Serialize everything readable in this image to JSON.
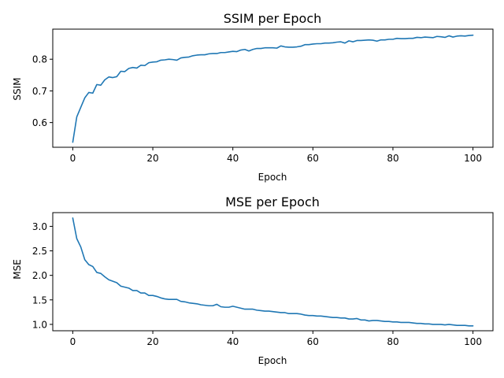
{
  "colors": {
    "line": "#1f77b4",
    "axes": "#000000",
    "background": "#ffffff"
  },
  "chart_data": [
    {
      "type": "line",
      "title": "SSIM per Epoch",
      "xlabel": "Epoch",
      "ylabel": "SSIM",
      "xlim": [
        -5,
        105
      ],
      "ylim": [
        0.522,
        0.895
      ],
      "xticks": [
        0,
        20,
        40,
        60,
        80,
        100
      ],
      "yticks": [
        0.6,
        0.7,
        0.8
      ],
      "ytick_labels": [
        "0.6",
        "0.7",
        "0.8"
      ],
      "grid": false,
      "x": [
        0,
        1,
        2,
        3,
        4,
        5,
        6,
        7,
        8,
        9,
        10,
        11,
        12,
        13,
        14,
        15,
        16,
        17,
        18,
        19,
        20,
        21,
        22,
        23,
        24,
        25,
        26,
        27,
        28,
        29,
        30,
        31,
        32,
        33,
        34,
        35,
        36,
        37,
        38,
        39,
        40,
        41,
        42,
        43,
        44,
        45,
        46,
        47,
        48,
        49,
        50,
        51,
        52,
        53,
        54,
        55,
        56,
        57,
        58,
        59,
        60,
        61,
        62,
        63,
        64,
        65,
        66,
        67,
        68,
        69,
        70,
        71,
        72,
        73,
        74,
        75,
        76,
        77,
        78,
        79,
        80,
        81,
        82,
        83,
        84,
        85,
        86,
        87,
        88,
        89,
        90,
        91,
        92,
        93,
        94,
        95,
        96,
        97,
        98,
        99,
        100
      ],
      "values": [
        0.538,
        0.618,
        0.648,
        0.678,
        0.695,
        0.693,
        0.72,
        0.718,
        0.735,
        0.744,
        0.742,
        0.745,
        0.762,
        0.761,
        0.771,
        0.774,
        0.772,
        0.781,
        0.78,
        0.789,
        0.791,
        0.792,
        0.797,
        0.798,
        0.8,
        0.799,
        0.797,
        0.804,
        0.806,
        0.807,
        0.811,
        0.813,
        0.814,
        0.814,
        0.817,
        0.818,
        0.818,
        0.821,
        0.821,
        0.823,
        0.825,
        0.824,
        0.829,
        0.831,
        0.826,
        0.831,
        0.834,
        0.834,
        0.836,
        0.836,
        0.836,
        0.835,
        0.842,
        0.839,
        0.838,
        0.838,
        0.839,
        0.841,
        0.846,
        0.846,
        0.848,
        0.849,
        0.849,
        0.851,
        0.851,
        0.852,
        0.854,
        0.855,
        0.851,
        0.858,
        0.855,
        0.859,
        0.859,
        0.86,
        0.861,
        0.86,
        0.857,
        0.861,
        0.861,
        0.863,
        0.863,
        0.866,
        0.865,
        0.865,
        0.866,
        0.866,
        0.869,
        0.868,
        0.87,
        0.869,
        0.868,
        0.872,
        0.871,
        0.869,
        0.874,
        0.87,
        0.873,
        0.874,
        0.873,
        0.875,
        0.876
      ]
    },
    {
      "type": "line",
      "title": "MSE per Epoch",
      "xlabel": "Epoch",
      "ylabel": "MSE",
      "xlim": [
        -5,
        105
      ],
      "ylim": [
        0.87,
        3.28
      ],
      "xticks": [
        0,
        20,
        40,
        60,
        80,
        100
      ],
      "yticks": [
        1.0,
        1.5,
        2.0,
        2.5,
        3.0
      ],
      "ytick_labels": [
        "1.0",
        "1.5",
        "2.0",
        "2.5",
        "3.0"
      ],
      "grid": false,
      "x": [
        0,
        1,
        2,
        3,
        4,
        5,
        6,
        7,
        8,
        9,
        10,
        11,
        12,
        13,
        14,
        15,
        16,
        17,
        18,
        19,
        20,
        21,
        22,
        23,
        24,
        25,
        26,
        27,
        28,
        29,
        30,
        31,
        32,
        33,
        34,
        35,
        36,
        37,
        38,
        39,
        40,
        41,
        42,
        43,
        44,
        45,
        46,
        47,
        48,
        49,
        50,
        51,
        52,
        53,
        54,
        55,
        56,
        57,
        58,
        59,
        60,
        61,
        62,
        63,
        64,
        65,
        66,
        67,
        68,
        69,
        70,
        71,
        72,
        73,
        74,
        75,
        76,
        77,
        78,
        79,
        80,
        81,
        82,
        83,
        84,
        85,
        86,
        87,
        88,
        89,
        90,
        91,
        92,
        93,
        94,
        95,
        96,
        97,
        98,
        99,
        100
      ],
      "values": [
        3.17,
        2.75,
        2.58,
        2.32,
        2.22,
        2.18,
        2.06,
        2.04,
        1.97,
        1.91,
        1.88,
        1.85,
        1.78,
        1.76,
        1.74,
        1.69,
        1.69,
        1.64,
        1.64,
        1.59,
        1.59,
        1.57,
        1.54,
        1.52,
        1.51,
        1.51,
        1.51,
        1.47,
        1.46,
        1.44,
        1.43,
        1.42,
        1.4,
        1.39,
        1.38,
        1.38,
        1.41,
        1.36,
        1.35,
        1.35,
        1.37,
        1.35,
        1.33,
        1.31,
        1.31,
        1.31,
        1.29,
        1.28,
        1.27,
        1.27,
        1.26,
        1.25,
        1.24,
        1.24,
        1.22,
        1.22,
        1.22,
        1.21,
        1.19,
        1.18,
        1.18,
        1.17,
        1.17,
        1.16,
        1.15,
        1.14,
        1.14,
        1.13,
        1.13,
        1.11,
        1.11,
        1.12,
        1.09,
        1.09,
        1.07,
        1.08,
        1.08,
        1.07,
        1.06,
        1.06,
        1.05,
        1.05,
        1.04,
        1.04,
        1.04,
        1.03,
        1.02,
        1.02,
        1.01,
        1.01,
        1.0,
        1.0,
        1.0,
        0.99,
        1.0,
        0.99,
        0.98,
        0.98,
        0.98,
        0.97,
        0.97
      ]
    }
  ]
}
